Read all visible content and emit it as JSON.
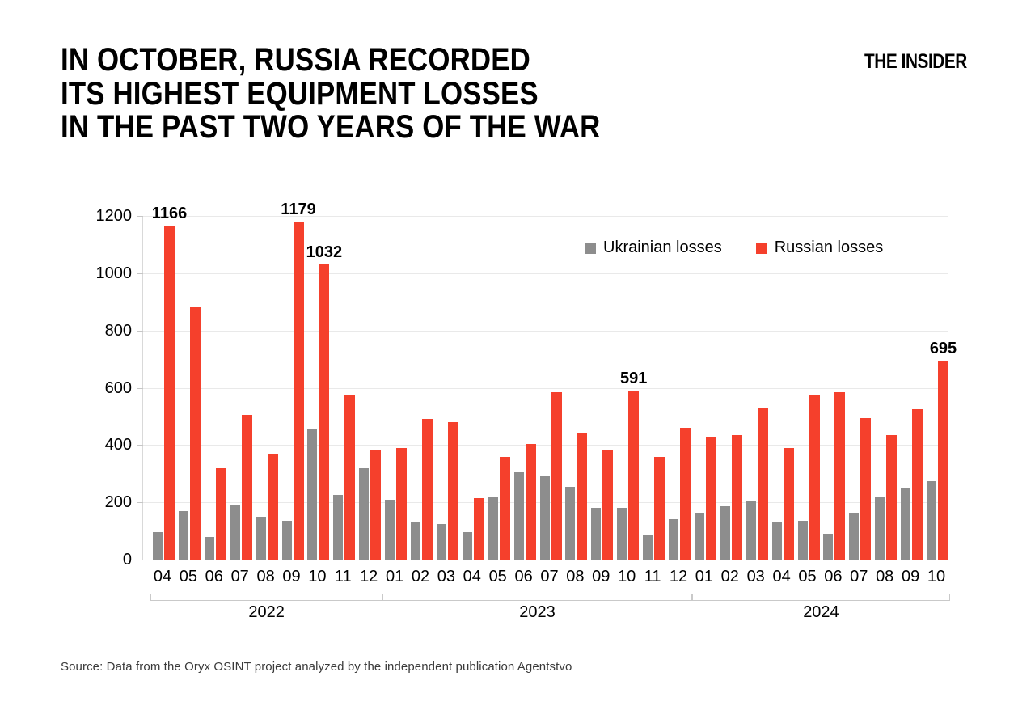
{
  "header": {
    "title": "IN OCTOBER, RUSSIA RECORDED\nITS HIGHEST EQUIPMENT LOSSES\nIN THE PAST TWO YEARS OF THE WAR",
    "brand": "THE INSIDER"
  },
  "source_note": "Source: Data from the Oryx OSINT project analyzed by the independent publication Agentstvo",
  "chart_data": {
    "type": "bar",
    "title": "In October, Russia recorded its highest equipment losses in the past two years of the war",
    "xlabel": "",
    "ylabel": "",
    "ylim": [
      0,
      1200
    ],
    "yticks": [
      0,
      200,
      400,
      600,
      800,
      1000,
      1200
    ],
    "grid": true,
    "legend_position": "top-right",
    "series": [
      {
        "name": "Ukrainian losses",
        "color": "#8d8d8d"
      },
      {
        "name": "Russian losses",
        "color": "#f5402c"
      }
    ],
    "colors": {
      "ukrainian": "#8d8d8d",
      "russian": "#f5402c",
      "gridline": "#e9e9e9",
      "axis": "#c6c6c6",
      "bracket": "#c9c9c9"
    },
    "years": [
      {
        "label": "2022",
        "months": [
          "04",
          "05",
          "06",
          "07",
          "08",
          "09",
          "10",
          "11",
          "12"
        ],
        "ukrainian": [
          95,
          170,
          80,
          190,
          150,
          135,
          455,
          225,
          320
        ],
        "russian": [
          1166,
          880,
          320,
          505,
          370,
          1179,
          1032,
          575,
          385
        ],
        "callouts": {
          "04": 1166,
          "09": 1179,
          "10": 1032
        }
      },
      {
        "label": "2023",
        "months": [
          "01",
          "02",
          "03",
          "04",
          "05",
          "06",
          "07",
          "08",
          "09",
          "10",
          "11",
          "12"
        ],
        "ukrainian": [
          210,
          130,
          125,
          95,
          220,
          305,
          295,
          255,
          180,
          180,
          85,
          140
        ],
        "russian": [
          390,
          490,
          480,
          215,
          360,
          405,
          585,
          440,
          385,
          591,
          360,
          460
        ],
        "callouts": {
          "10": 591
        }
      },
      {
        "label": "2024",
        "months": [
          "01",
          "02",
          "03",
          "04",
          "05",
          "06",
          "07",
          "08",
          "09",
          "10"
        ],
        "ukrainian": [
          165,
          185,
          205,
          130,
          135,
          90,
          165,
          220,
          250,
          275
        ],
        "russian": [
          430,
          435,
          530,
          390,
          575,
          585,
          495,
          435,
          525,
          695
        ],
        "callouts": {
          "10": 695
        }
      }
    ]
  }
}
